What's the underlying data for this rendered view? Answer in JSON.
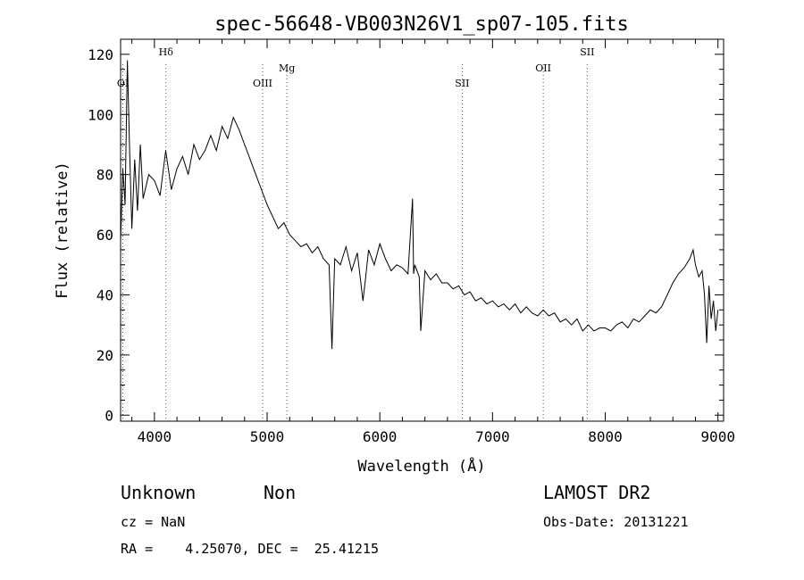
{
  "chart_data": {
    "type": "line",
    "title": "spec-56648-VB003N26V1_sp07-105.fits",
    "xlabel": "Wavelength (Å)",
    "ylabel": "Flux (relative)",
    "xlim": [
      3700,
      9050
    ],
    "ylim": [
      -2,
      125
    ],
    "xticks": [
      4000,
      5000,
      6000,
      7000,
      8000,
      9000
    ],
    "yticks": [
      0,
      20,
      40,
      60,
      80,
      100,
      120
    ],
    "grid": false,
    "series": [
      {
        "x": [
          3700,
          3720,
          3740,
          3760,
          3780,
          3800,
          3825,
          3850,
          3875,
          3900,
          3950,
          4000,
          4050,
          4100,
          4150,
          4200,
          4250,
          4300,
          4350,
          4400,
          4450,
          4500,
          4550,
          4600,
          4650,
          4700,
          4750,
          4800,
          4850,
          4900,
          4950,
          5000,
          5050,
          5100,
          5150,
          5200,
          5250,
          5300,
          5350,
          5400,
          5450,
          5500,
          5550,
          5575,
          5600,
          5650,
          5700,
          5750,
          5800,
          5850,
          5875,
          5900,
          5950,
          6000,
          6050,
          6100,
          6150,
          6200,
          6250,
          6290,
          6300,
          6310,
          6350,
          6363,
          6400,
          6450,
          6500,
          6550,
          6600,
          6650,
          6700,
          6750,
          6800,
          6850,
          6900,
          6950,
          7000,
          7050,
          7100,
          7150,
          7200,
          7250,
          7300,
          7350,
          7400,
          7450,
          7500,
          7550,
          7600,
          7650,
          7700,
          7750,
          7800,
          7850,
          7900,
          7950,
          8000,
          8050,
          8100,
          8150,
          8200,
          8250,
          8300,
          8350,
          8400,
          8450,
          8500,
          8550,
          8600,
          8650,
          8700,
          8750,
          8780,
          8800,
          8830,
          8860,
          8880,
          8900,
          8920,
          8940,
          8960,
          8980,
          9000
        ],
        "y": [
          58,
          82,
          70,
          118,
          88,
          62,
          85,
          68,
          90,
          72,
          80,
          78,
          73,
          88,
          75,
          82,
          86,
          80,
          90,
          85,
          88,
          93,
          88,
          96,
          92,
          99,
          95,
          90,
          85,
          80,
          75,
          70,
          66,
          62,
          64,
          60,
          58,
          56,
          57,
          54,
          56,
          52,
          50,
          22,
          52,
          50,
          56,
          48,
          54,
          38,
          46,
          55,
          50,
          57,
          52,
          48,
          50,
          49,
          47,
          72,
          47,
          50,
          46,
          28,
          48,
          45,
          47,
          44,
          44,
          42,
          43,
          40,
          41,
          38,
          39,
          37,
          38,
          36,
          37,
          35,
          37,
          34,
          36,
          34,
          33,
          35,
          33,
          34,
          31,
          32,
          30,
          32,
          28,
          30,
          28,
          29,
          29,
          28,
          30,
          31,
          29,
          32,
          31,
          33,
          35,
          34,
          36,
          40,
          44,
          47,
          49,
          52,
          55,
          50,
          46,
          48,
          40,
          24,
          43,
          32,
          38,
          28,
          35
        ]
      }
    ],
    "line_markers": [
      {
        "label": "OI",
        "x": 3720,
        "level": 1
      },
      {
        "label": "Hδ",
        "x": 4102,
        "level": 0
      },
      {
        "label": "OIII",
        "x": 4960,
        "level": 1
      },
      {
        "label": "Mg",
        "x": 5175,
        "level": 2
      },
      {
        "label": "SII",
        "x": 6731,
        "level": 1
      },
      {
        "label": "OII",
        "x": 7450,
        "level": 2
      },
      {
        "label": "SII",
        "x": 7840,
        "level": 0
      }
    ]
  },
  "info": {
    "class": "Unknown",
    "subclass": "Non",
    "survey": "LAMOST DR2",
    "cz": "cz = NaN",
    "obs_date": "Obs-Date: 20131221",
    "coords": "RA =    4.25070, DEC =  25.41215"
  }
}
